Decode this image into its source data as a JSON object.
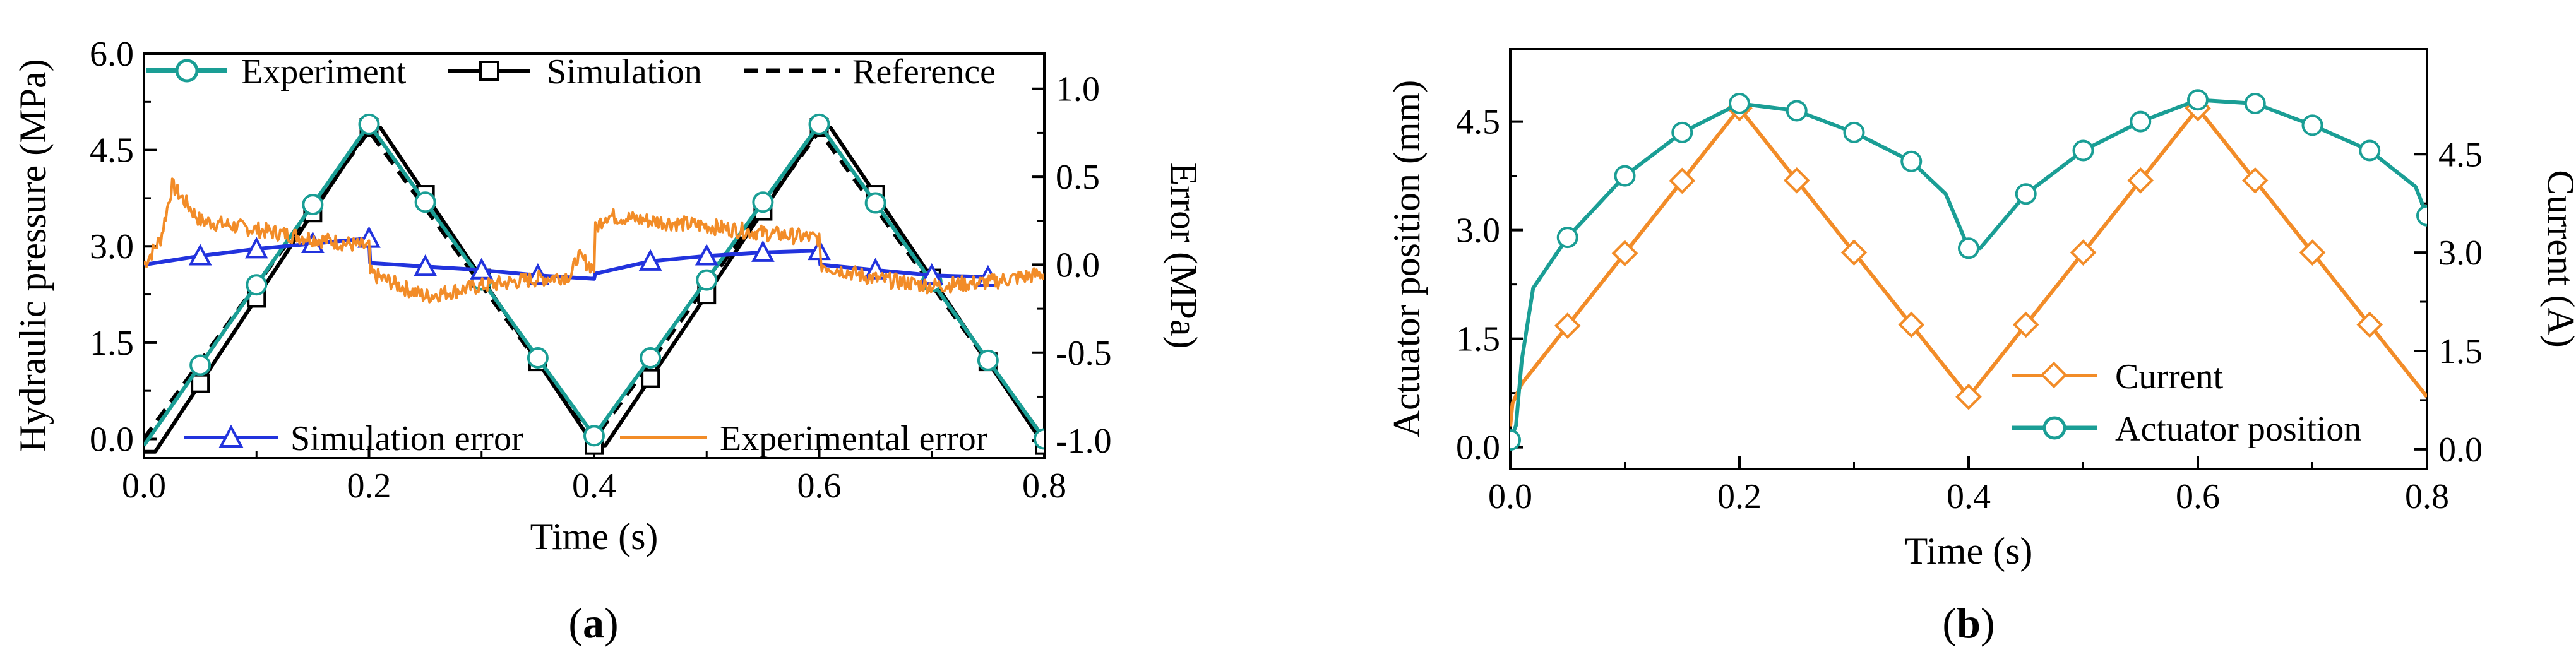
{
  "chart_data": [
    {
      "id": "a",
      "type": "line",
      "caption_letter": "a",
      "xlabel": "Time (s)",
      "ylabel": "Hydraulic pressure  (MPa)",
      "y2label": "Error (MPa)",
      "xlim": [
        0.0,
        0.8
      ],
      "ylim": [
        -0.3,
        6.0
      ],
      "y2lim": [
        -1.1,
        1.2
      ],
      "xticks": [
        "0.0",
        "0.2",
        "0.4",
        "0.6",
        "0.8"
      ],
      "yticks": [
        "0.0",
        "1.5",
        "3.0",
        "4.5",
        "6.0"
      ],
      "y2ticks": [
        "-1.0",
        "-0.5",
        "0.0",
        "0.5",
        "1.0"
      ],
      "legend": {
        "experiment": "Experiment",
        "simulation": "Simulation",
        "reference": "Reference",
        "sim_error": "Simulation error",
        "exp_error": "Experimental error"
      },
      "series": [
        {
          "name": "Reference",
          "axis": "left",
          "color": "#000000",
          "style": "dashed",
          "x": [
            0.0,
            0.2,
            0.4,
            0.6,
            0.8
          ],
          "y": [
            0.0,
            4.8,
            0.0,
            4.8,
            0.0
          ]
        },
        {
          "name": "Simulation",
          "axis": "left",
          "color": "#000000",
          "marker": "square",
          "x": [
            0.0,
            0.01,
            0.2,
            0.21,
            0.4,
            0.41,
            0.6,
            0.61,
            0.8
          ],
          "y": [
            -0.2,
            -0.2,
            4.85,
            4.85,
            -0.1,
            -0.1,
            4.85,
            4.85,
            -0.1
          ],
          "marker_x": [
            0.05,
            0.1,
            0.15,
            0.2,
            0.25,
            0.3,
            0.35,
            0.4,
            0.45,
            0.5,
            0.55,
            0.6,
            0.65,
            0.7,
            0.75,
            0.8
          ]
        },
        {
          "name": "Experiment",
          "axis": "left",
          "color": "#1a9e95",
          "marker": "circle",
          "x": [
            0.0,
            0.2,
            0.4,
            0.6,
            0.8
          ],
          "y": [
            -0.1,
            4.9,
            0.05,
            4.9,
            0.0
          ],
          "marker_x": [
            0.05,
            0.1,
            0.15,
            0.2,
            0.25,
            0.3,
            0.35,
            0.4,
            0.45,
            0.5,
            0.55,
            0.6,
            0.65,
            0.7,
            0.75,
            0.8
          ]
        },
        {
          "name": "Simulation error",
          "axis": "right",
          "color": "#2233dd",
          "marker": "triangle",
          "x": [
            0.0,
            0.05,
            0.1,
            0.15,
            0.2,
            0.201,
            0.25,
            0.3,
            0.35,
            0.4,
            0.401,
            0.45,
            0.5,
            0.55,
            0.6,
            0.601,
            0.65,
            0.7,
            0.75
          ],
          "y": [
            0.0,
            0.05,
            0.09,
            0.12,
            0.15,
            0.01,
            -0.01,
            -0.03,
            -0.06,
            -0.08,
            -0.05,
            0.02,
            0.05,
            0.07,
            0.08,
            0.0,
            -0.03,
            -0.06,
            -0.07
          ],
          "marker_x": [
            0.05,
            0.1,
            0.15,
            0.2,
            0.25,
            0.3,
            0.35,
            0.45,
            0.5,
            0.55,
            0.6,
            0.65,
            0.7,
            0.75
          ]
        },
        {
          "name": "Experimental error",
          "axis": "right",
          "color": "#f28c28",
          "style": "noisy",
          "x": [
            0.0,
            0.015,
            0.025,
            0.05,
            0.1,
            0.15,
            0.2,
            0.201,
            0.25,
            0.3,
            0.35,
            0.38,
            0.385,
            0.4,
            0.401,
            0.41,
            0.45,
            0.5,
            0.55,
            0.6,
            0.601,
            0.65,
            0.7,
            0.75,
            0.8
          ],
          "y": [
            0.0,
            0.15,
            0.45,
            0.25,
            0.2,
            0.15,
            0.1,
            -0.05,
            -0.18,
            -0.12,
            -0.08,
            -0.06,
            0.05,
            -0.02,
            0.2,
            0.28,
            0.25,
            0.22,
            0.18,
            0.15,
            0.0,
            -0.08,
            -0.12,
            -0.1,
            -0.05
          ]
        }
      ]
    },
    {
      "id": "b",
      "type": "line",
      "caption_letter": "b",
      "xlabel": "Time (s)",
      "ylabel": "Actuator position (mm)",
      "y2label": "Current (A)",
      "xlim": [
        0.0,
        0.8
      ],
      "ylim": [
        -0.3,
        5.5
      ],
      "y2lim": [
        -0.3,
        6.1
      ],
      "xticks": [
        "0.0",
        "0.2",
        "0.4",
        "0.6",
        "0.8"
      ],
      "yticks": [
        "0.0",
        "1.5",
        "3.0",
        "4.5"
      ],
      "y2ticks": [
        "0.0",
        "1.5",
        "3.0",
        "4.5"
      ],
      "legend": {
        "current": "Current",
        "position": "Actuator position"
      },
      "series": [
        {
          "name": "Current",
          "axis": "right",
          "color": "#f28c28",
          "marker": "diamond",
          "x": [
            0.0,
            0.002,
            0.01,
            0.2,
            0.4,
            0.6,
            0.8
          ],
          "y": [
            0.35,
            0.7,
            1.0,
            5.2,
            0.8,
            5.2,
            0.8
          ],
          "marker_x": [
            0.05,
            0.1,
            0.15,
            0.2,
            0.25,
            0.3,
            0.35,
            0.4,
            0.45,
            0.5,
            0.55,
            0.6,
            0.65,
            0.7,
            0.75
          ]
        },
        {
          "name": "Actuator position",
          "axis": "left",
          "color": "#1a9e95",
          "marker": "circle",
          "x": [
            0.0,
            0.005,
            0.01,
            0.02,
            0.05,
            0.1,
            0.15,
            0.2,
            0.25,
            0.3,
            0.35,
            0.38,
            0.4,
            0.41,
            0.45,
            0.5,
            0.55,
            0.6,
            0.65,
            0.7,
            0.75,
            0.79,
            0.8
          ],
          "y": [
            0.1,
            0.3,
            1.2,
            2.2,
            2.9,
            3.75,
            4.35,
            4.75,
            4.65,
            4.35,
            3.95,
            3.5,
            2.75,
            2.75,
            3.5,
            4.1,
            4.5,
            4.8,
            4.75,
            4.45,
            4.1,
            3.6,
            3.2
          ],
          "marker_x": [
            0.0,
            0.05,
            0.1,
            0.15,
            0.2,
            0.25,
            0.3,
            0.35,
            0.4,
            0.45,
            0.5,
            0.55,
            0.6,
            0.65,
            0.7,
            0.75,
            0.8
          ]
        }
      ]
    }
  ]
}
